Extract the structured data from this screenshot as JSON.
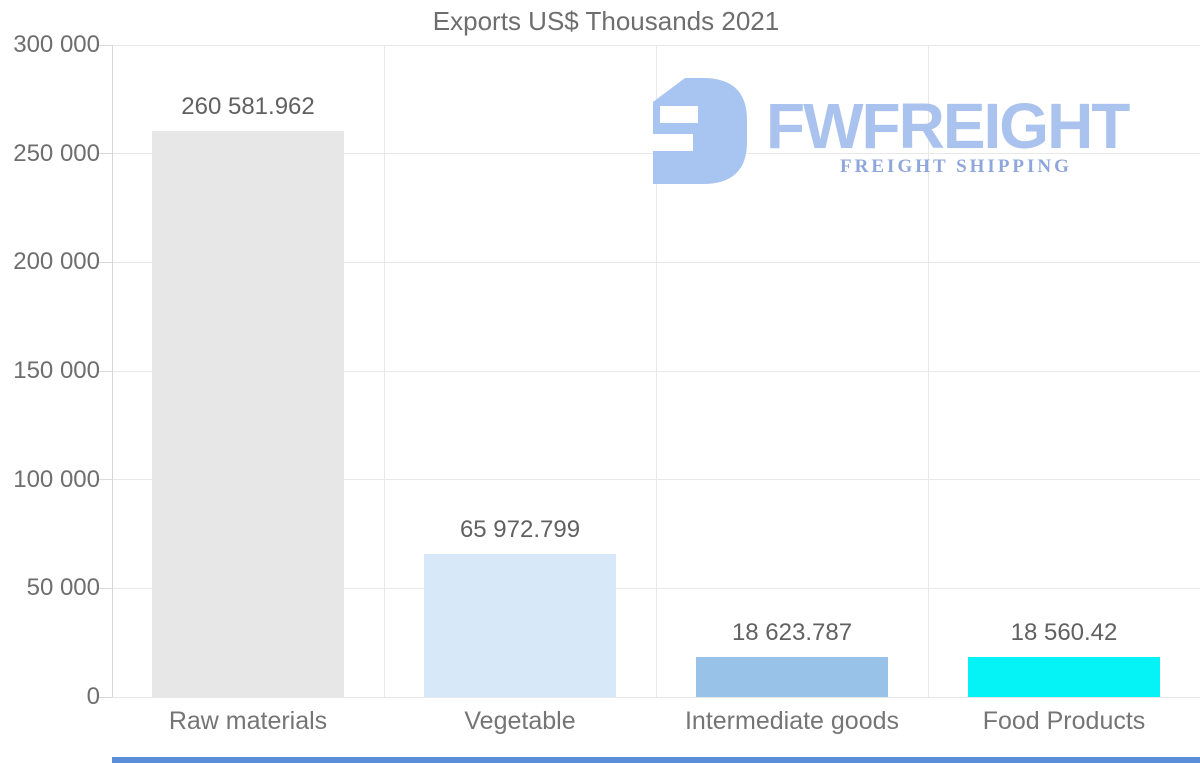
{
  "title": "Exports US$ Thousands 2021",
  "logo": {
    "brand": "FWFREIGHT",
    "tagline": "FREIGHT SHIPPING",
    "colors": {
      "mark": "#a8c4f0",
      "brand": "#a9c3ee",
      "tagline": "#8fa6dc"
    }
  },
  "chart_data": {
    "type": "bar",
    "title": "Exports US$ Thousands 2021",
    "categories": [
      "Raw materials",
      "Vegetable",
      "Intermediate goods",
      "Food Products"
    ],
    "values": [
      260581.962,
      65972.799,
      18623.787,
      18560.42
    ],
    "value_labels": [
      "260 581.962",
      "65 972.799",
      "18 623.787",
      "18 560.42"
    ],
    "bar_colors": [
      "#e7e7e7",
      "#d7e8f8",
      "#99c2e8",
      "#05f3f7"
    ],
    "xlabel": "",
    "ylabel": "",
    "ylim": [
      0,
      300000
    ],
    "ytick_interval": 50000,
    "yticks": [
      {
        "value": 300000,
        "label": "300 000"
      },
      {
        "value": 250000,
        "label": "250 000"
      },
      {
        "value": 200000,
        "label": "200 000"
      },
      {
        "value": 150000,
        "label": "150 000"
      },
      {
        "value": 100000,
        "label": "100 000"
      },
      {
        "value": 50000,
        "label": "50 000"
      },
      {
        "value": 0,
        "label": "0"
      }
    ],
    "grid": true,
    "legend_position": "none",
    "grid_color": "#e8e8e8",
    "axis_color": "#d6d6d6",
    "tick_color": "#d9d9d9",
    "label_color": "#6e6e6e",
    "value_label_color": "#616161"
  },
  "bottom_strip": {
    "color": "#5b8ed8"
  }
}
